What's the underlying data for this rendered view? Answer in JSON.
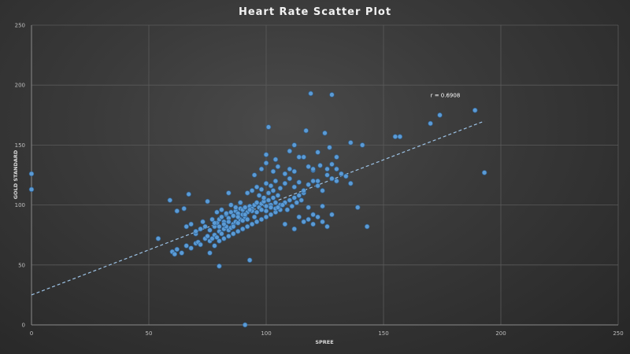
{
  "chart_data": {
    "type": "scatter",
    "title": "Heart Rate Scatter Plot",
    "xlabel": "SPREE",
    "ylabel": "GOLD STANDARD",
    "xlim": [
      0,
      250
    ],
    "ylim": [
      0,
      250
    ],
    "x_ticks": [
      "0",
      "50",
      "100",
      "150",
      "200",
      "250"
    ],
    "y_ticks": [
      "0",
      "50",
      "100",
      "150",
      "200",
      "250"
    ],
    "grid": true,
    "legend": null,
    "marker_color": "#5b9bd5",
    "trendline": {
      "style": "dashed",
      "color": "#9dc3e6",
      "x": [
        0,
        193
      ],
      "y": [
        25,
        170
      ]
    },
    "annotations": [
      {
        "text": "r = 0.6908",
        "x": 170,
        "y": 190
      }
    ],
    "points": [
      [
        0,
        126
      ],
      [
        0,
        113
      ],
      [
        91,
        0
      ],
      [
        80,
        49
      ],
      [
        93,
        54
      ],
      [
        54,
        72
      ],
      [
        59,
        104
      ],
      [
        62,
        95
      ],
      [
        65,
        97
      ],
      [
        67,
        109
      ],
      [
        75,
        103
      ],
      [
        84,
        110
      ],
      [
        60,
        61
      ],
      [
        61,
        59
      ],
      [
        62,
        63
      ],
      [
        64,
        60
      ],
      [
        66,
        66
      ],
      [
        68,
        64
      ],
      [
        70,
        68
      ],
      [
        71,
        69
      ],
      [
        72,
        67
      ],
      [
        74,
        72
      ],
      [
        76,
        70
      ],
      [
        77,
        72
      ],
      [
        78,
        75
      ],
      [
        79,
        73
      ],
      [
        80,
        78
      ],
      [
        81,
        76
      ],
      [
        82,
        80
      ],
      [
        83,
        82
      ],
      [
        84,
        79
      ],
      [
        85,
        81
      ],
      [
        86,
        84
      ],
      [
        87,
        86
      ],
      [
        88,
        85
      ],
      [
        89,
        88
      ],
      [
        90,
        87
      ],
      [
        91,
        90
      ],
      [
        70,
        76
      ],
      [
        72,
        80
      ],
      [
        74,
        82
      ],
      [
        76,
        79
      ],
      [
        78,
        82
      ],
      [
        79,
        85
      ],
      [
        80,
        88
      ],
      [
        81,
        90
      ],
      [
        82,
        86
      ],
      [
        83,
        92
      ],
      [
        84,
        89
      ],
      [
        85,
        94
      ],
      [
        86,
        91
      ],
      [
        87,
        95
      ],
      [
        88,
        93
      ],
      [
        89,
        97
      ],
      [
        90,
        96
      ],
      [
        91,
        98
      ],
      [
        92,
        94
      ],
      [
        93,
        99
      ],
      [
        94,
        97
      ],
      [
        95,
        100
      ],
      [
        96,
        102
      ],
      [
        97,
        98
      ],
      [
        98,
        101
      ],
      [
        99,
        103
      ],
      [
        100,
        99
      ],
      [
        101,
        104
      ],
      [
        102,
        100
      ],
      [
        103,
        106
      ],
      [
        104,
        102
      ],
      [
        105,
        108
      ],
      [
        76,
        60
      ],
      [
        78,
        66
      ],
      [
        80,
        70
      ],
      [
        82,
        72
      ],
      [
        84,
        74
      ],
      [
        86,
        76
      ],
      [
        88,
        78
      ],
      [
        90,
        80
      ],
      [
        92,
        82
      ],
      [
        94,
        84
      ],
      [
        96,
        86
      ],
      [
        98,
        88
      ],
      [
        100,
        90
      ],
      [
        102,
        92
      ],
      [
        104,
        94
      ],
      [
        106,
        96
      ],
      [
        78,
        85
      ],
      [
        80,
        82
      ],
      [
        82,
        84
      ],
      [
        84,
        86
      ],
      [
        86,
        82
      ],
      [
        88,
        90
      ],
      [
        90,
        92
      ],
      [
        92,
        88
      ],
      [
        94,
        95
      ],
      [
        96,
        94
      ],
      [
        98,
        96
      ],
      [
        100,
        95
      ],
      [
        102,
        98
      ],
      [
        104,
        97
      ],
      [
        106,
        100
      ],
      [
        108,
        102
      ],
      [
        110,
        104
      ],
      [
        112,
        106
      ],
      [
        114,
        108
      ],
      [
        116,
        110
      ],
      [
        92,
        110
      ],
      [
        94,
        112
      ],
      [
        96,
        115
      ],
      [
        98,
        113
      ],
      [
        100,
        118
      ],
      [
        102,
        116
      ],
      [
        104,
        120
      ],
      [
        106,
        114
      ],
      [
        108,
        118
      ],
      [
        110,
        122
      ],
      [
        112,
        115
      ],
      [
        114,
        119
      ],
      [
        116,
        112
      ],
      [
        118,
        117
      ],
      [
        120,
        120
      ],
      [
        122,
        116
      ],
      [
        124,
        112
      ],
      [
        126,
        125
      ],
      [
        128,
        122
      ],
      [
        130,
        120
      ],
      [
        132,
        126
      ],
      [
        134,
        124
      ],
      [
        95,
        125
      ],
      [
        98,
        130
      ],
      [
        100,
        135
      ],
      [
        103,
        128
      ],
      [
        105,
        132
      ],
      [
        108,
        126
      ],
      [
        110,
        130
      ],
      [
        112,
        128
      ],
      [
        114,
        140
      ],
      [
        118,
        132
      ],
      [
        120,
        129
      ],
      [
        123,
        133
      ],
      [
        126,
        130
      ],
      [
        128,
        134
      ],
      [
        130,
        130
      ],
      [
        100,
        142
      ],
      [
        104,
        138
      ],
      [
        110,
        145
      ],
      [
        112,
        150
      ],
      [
        116,
        140
      ],
      [
        122,
        144
      ],
      [
        127,
        148
      ],
      [
        130,
        140
      ],
      [
        136,
        152
      ],
      [
        141,
        150
      ],
      [
        101,
        165
      ],
      [
        117,
        162
      ],
      [
        125,
        160
      ],
      [
        119,
        193
      ],
      [
        128,
        192
      ],
      [
        108,
        84
      ],
      [
        112,
        80
      ],
      [
        114,
        90
      ],
      [
        116,
        86
      ],
      [
        118,
        88
      ],
      [
        120,
        84
      ],
      [
        122,
        90
      ],
      [
        124,
        86
      ],
      [
        126,
        82
      ],
      [
        128,
        92
      ],
      [
        120,
        92
      ],
      [
        124,
        99
      ],
      [
        118,
        98
      ],
      [
        136,
        118
      ],
      [
        139,
        98
      ],
      [
        143,
        82
      ],
      [
        120,
        130
      ],
      [
        122,
        120
      ],
      [
        155,
        157
      ],
      [
        157,
        157
      ],
      [
        170,
        168
      ],
      [
        174,
        175
      ],
      [
        189,
        179
      ],
      [
        193,
        127
      ],
      [
        66,
        82
      ],
      [
        68,
        84
      ],
      [
        70,
        78
      ],
      [
        73,
        86
      ],
      [
        75,
        74
      ],
      [
        77,
        88
      ],
      [
        79,
        94
      ],
      [
        81,
        96
      ],
      [
        83,
        93
      ],
      [
        85,
        100
      ],
      [
        87,
        98
      ],
      [
        89,
        102
      ],
      [
        91,
        92
      ],
      [
        93,
        96
      ],
      [
        95,
        90
      ],
      [
        97,
        108
      ],
      [
        99,
        106
      ],
      [
        101,
        110
      ],
      [
        103,
        112
      ],
      [
        105,
        98
      ],
      [
        107,
        100
      ],
      [
        109,
        96
      ],
      [
        111,
        99
      ],
      [
        113,
        102
      ],
      [
        115,
        104
      ]
    ]
  }
}
